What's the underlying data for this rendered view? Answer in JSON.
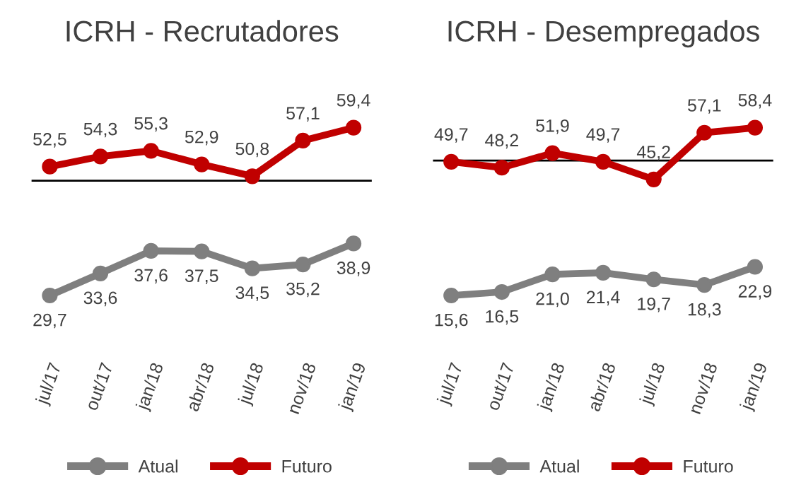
{
  "chart_data": [
    {
      "type": "line",
      "title": "ICRH - Recrutadores",
      "categories": [
        "jul/17",
        "out/17",
        "jan/18",
        "abr/18",
        "jul/18",
        "nov/18",
        "jan/19"
      ],
      "tick_labels": "x",
      "grid": false,
      "legend": "bottom",
      "marker": "circle",
      "line_style": "solid",
      "series": [
        {
          "name": "Atual",
          "color": "#7f7f7f",
          "values": [
            29.7,
            33.6,
            37.6,
            37.5,
            34.5,
            35.2,
            38.9
          ],
          "value_labels": [
            "29,7",
            "33,6",
            "37,6",
            "37,5",
            "34,5",
            "35,2",
            "38,9"
          ]
        },
        {
          "name": "Futuro",
          "color": "#c00000",
          "values": [
            52.5,
            54.3,
            55.3,
            52.9,
            50.8,
            57.1,
            59.4
          ],
          "value_labels": [
            "52,5",
            "54,3",
            "55,3",
            "52,9",
            "50,8",
            "57,1",
            "59,4"
          ]
        }
      ],
      "ref_lines": [
        {
          "axis": "y",
          "value": 50,
          "color": "#000000"
        }
      ]
    },
    {
      "type": "line",
      "title": "ICRH - Desempregados",
      "categories": [
        "jul/17",
        "out/17",
        "jan/18",
        "abr/18",
        "jul/18",
        "nov/18",
        "jan/19"
      ],
      "tick_labels": "x",
      "grid": false,
      "legend": "bottom",
      "marker": "circle",
      "line_style": "solid",
      "series": [
        {
          "name": "Atual",
          "color": "#7f7f7f",
          "values": [
            15.6,
            16.5,
            21.0,
            21.4,
            19.7,
            18.3,
            22.9
          ],
          "value_labels": [
            "15,6",
            "16,5",
            "21,0",
            "21,4",
            "19,7",
            "18,3",
            "22,9"
          ]
        },
        {
          "name": "Futuro",
          "color": "#c00000",
          "values": [
            49.7,
            48.2,
            51.9,
            49.7,
            45.2,
            57.1,
            58.4
          ],
          "value_labels": [
            "49,7",
            "48,2",
            "51,9",
            "49,7",
            "45,2",
            "57,1",
            "58,4"
          ]
        }
      ],
      "ref_lines": [
        {
          "axis": "y",
          "value": 50,
          "color": "#000000"
        }
      ]
    }
  ]
}
